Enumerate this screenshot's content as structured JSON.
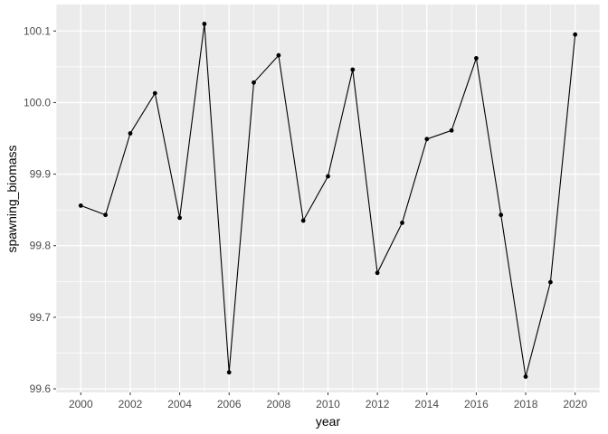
{
  "chart_data": {
    "type": "line",
    "title": "",
    "xlabel": "year",
    "ylabel": "spawning_biomass",
    "x": [
      2000,
      2001,
      2002,
      2003,
      2004,
      2005,
      2006,
      2007,
      2008,
      2009,
      2010,
      2011,
      2012,
      2013,
      2014,
      2015,
      2016,
      2017,
      2018,
      2019,
      2020
    ],
    "series": [
      {
        "name": "spawning_biomass",
        "values": [
          99.856,
          99.843,
          99.957,
          100.013,
          99.839,
          100.11,
          99.623,
          100.028,
          100.066,
          99.835,
          99.897,
          100.046,
          99.762,
          99.832,
          99.949,
          99.961,
          100.062,
          99.843,
          99.617,
          99.749,
          100.095
        ]
      }
    ],
    "xlim": [
      1999,
      2021
    ],
    "ylim": [
      99.595,
      100.137
    ],
    "x_ticks": {
      "values": [
        2000,
        2002,
        2004,
        2006,
        2008,
        2010,
        2012,
        2014,
        2016,
        2018,
        2020
      ],
      "labels": [
        "2000",
        "2002",
        "2004",
        "2006",
        "2008",
        "2010",
        "2012",
        "2014",
        "2016",
        "2018",
        "2020"
      ]
    },
    "y_ticks": {
      "values": [
        99.6,
        99.7,
        99.8,
        99.9,
        100.0,
        100.1
      ],
      "labels": [
        "99.6",
        "99.7",
        "99.8",
        "99.9",
        "100.0",
        "100.1"
      ]
    },
    "x_minor": [
      1999,
      2001,
      2003,
      2005,
      2007,
      2009,
      2011,
      2013,
      2015,
      2017,
      2019,
      2021
    ],
    "y_minor": [
      99.65,
      99.75,
      99.85,
      99.95,
      100.05
    ],
    "grid": true,
    "legend": "none",
    "marker": "point",
    "style": {
      "panel_bg": "#EBEBEB",
      "grid_color": "#FFFFFF",
      "line_color": "#000000",
      "point_color": "#000000",
      "axis_text_color": "#4D4D4D",
      "axis_title_color": "#000000",
      "tick_color": "#333333",
      "outer_bg": "#FFFFFF"
    }
  }
}
